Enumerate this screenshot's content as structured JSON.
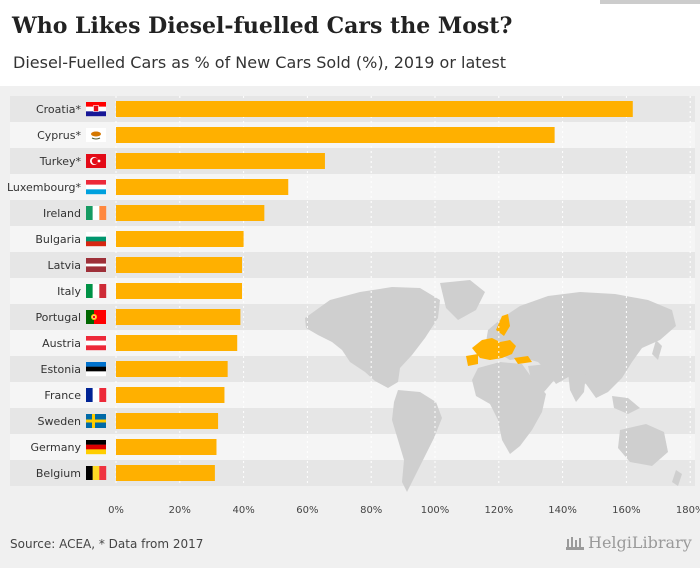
{
  "title": "Who Likes Diesel-fuelled Cars the Most?",
  "subtitle": "Diesel-Fuelled Cars as % of New Cars Sold (%), 2019 or latest",
  "footer": {
    "source": "Source: ACEA, * Data from 2017",
    "brand": "HelgiLibrary"
  },
  "colors": {
    "bar": "#ffb000",
    "map_land": "#cfcfcf",
    "map_highlight": "#ffb000",
    "row_light": "#f5f5f5",
    "row_dark": "#e6e6e6"
  },
  "chart_data": {
    "type": "bar",
    "orientation": "horizontal",
    "categories": [
      "Croatia*",
      "Cyprus*",
      "Turkey*",
      "Luxembourg*",
      "Ireland",
      "Bulgaria",
      "Latvia",
      "Italy",
      "Portugal",
      "Austria",
      "Estonia",
      "France",
      "Sweden",
      "Germany",
      "Belgium"
    ],
    "flags": [
      "croatia-flag",
      "cyprus-flag",
      "turkey-flag",
      "luxembourg-flag",
      "ireland-flag",
      "bulgaria-flag",
      "latvia-flag",
      "italy-flag",
      "portugal-flag",
      "austria-flag",
      "estonia-flag",
      "france-flag",
      "sweden-flag",
      "germany-flag",
      "belgium-flag"
    ],
    "values": [
      162,
      137.5,
      65.5,
      54,
      46.5,
      40,
      39.5,
      39.5,
      39,
      38,
      35,
      34,
      32,
      31.5,
      31
    ],
    "xlim": [
      0,
      180
    ],
    "xticks": [
      0,
      20,
      40,
      60,
      80,
      100,
      120,
      140,
      160,
      180
    ],
    "xtick_labels": [
      "0%",
      "20%",
      "40%",
      "60%",
      "80%",
      "100%",
      "120%",
      "140%",
      "160%",
      "180%"
    ],
    "xlabel": "",
    "ylabel": "",
    "grid": true,
    "legend": "none"
  }
}
